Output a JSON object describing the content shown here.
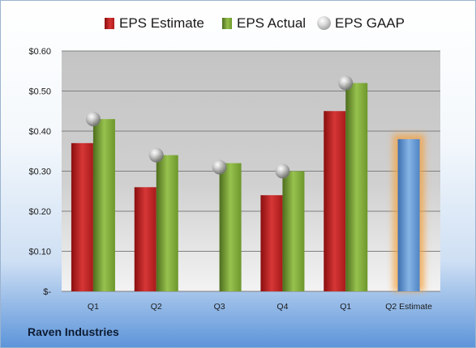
{
  "chart_data": {
    "type": "bar",
    "categories": [
      "Q1",
      "Q2",
      "Q3",
      "Q4",
      "Q1",
      "Q2 Estimate"
    ],
    "series": [
      {
        "name": "EPS Estimate",
        "values": [
          0.37,
          0.26,
          null,
          0.24,
          0.45,
          null
        ]
      },
      {
        "name": "EPS Actual",
        "values": [
          0.43,
          0.34,
          0.32,
          0.3,
          0.52,
          0.38
        ]
      },
      {
        "name": "EPS GAAP",
        "values": [
          0.43,
          0.34,
          0.31,
          0.3,
          0.52,
          null
        ]
      }
    ],
    "ylim": [
      0,
      0.6
    ],
    "yticks": [
      0,
      0.1,
      0.2,
      0.3,
      0.4,
      0.5,
      0.6
    ],
    "ytick_labels": [
      "$-",
      "$0.10",
      "$0.20",
      "$0.30",
      "$0.40",
      "$0.50",
      "$0.60"
    ],
    "legend_position": "top",
    "grid": true,
    "highlight_category": "Q2 Estimate",
    "colors": {
      "estimate": "#c42525",
      "actual": "#86b341",
      "gaap": "#b4b4b4",
      "forecast": "#6a9fd8",
      "forecast_glow": "#f5a340"
    }
  },
  "footer": {
    "company": "Raven Industries"
  }
}
